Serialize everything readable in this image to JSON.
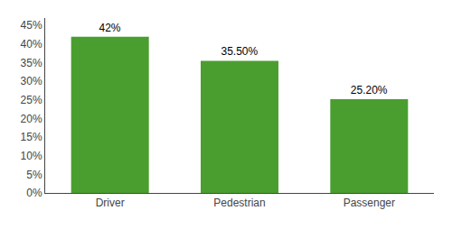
{
  "chart_data": {
    "type": "bar",
    "categories": [
      "Driver",
      "Pedestrian",
      "Passenger"
    ],
    "values": [
      42.0,
      35.5,
      25.2
    ],
    "value_labels": [
      "42%",
      "35.50%",
      "25.20%"
    ],
    "data_labels": true,
    "color": "#4a9e2f",
    "ylim": [
      0,
      47
    ],
    "yticks": [
      {
        "value": 0,
        "label": "0%"
      },
      {
        "value": 5,
        "label": "5%"
      },
      {
        "value": 10,
        "label": "10%"
      },
      {
        "value": 15,
        "label": "15%"
      },
      {
        "value": 20,
        "label": "20%"
      },
      {
        "value": 25,
        "label": "25%"
      },
      {
        "value": 30,
        "label": "30%"
      },
      {
        "value": 35,
        "label": "35%"
      },
      {
        "value": 40,
        "label": "40%"
      },
      {
        "value": 45,
        "label": "45%"
      }
    ],
    "grid": false
  }
}
